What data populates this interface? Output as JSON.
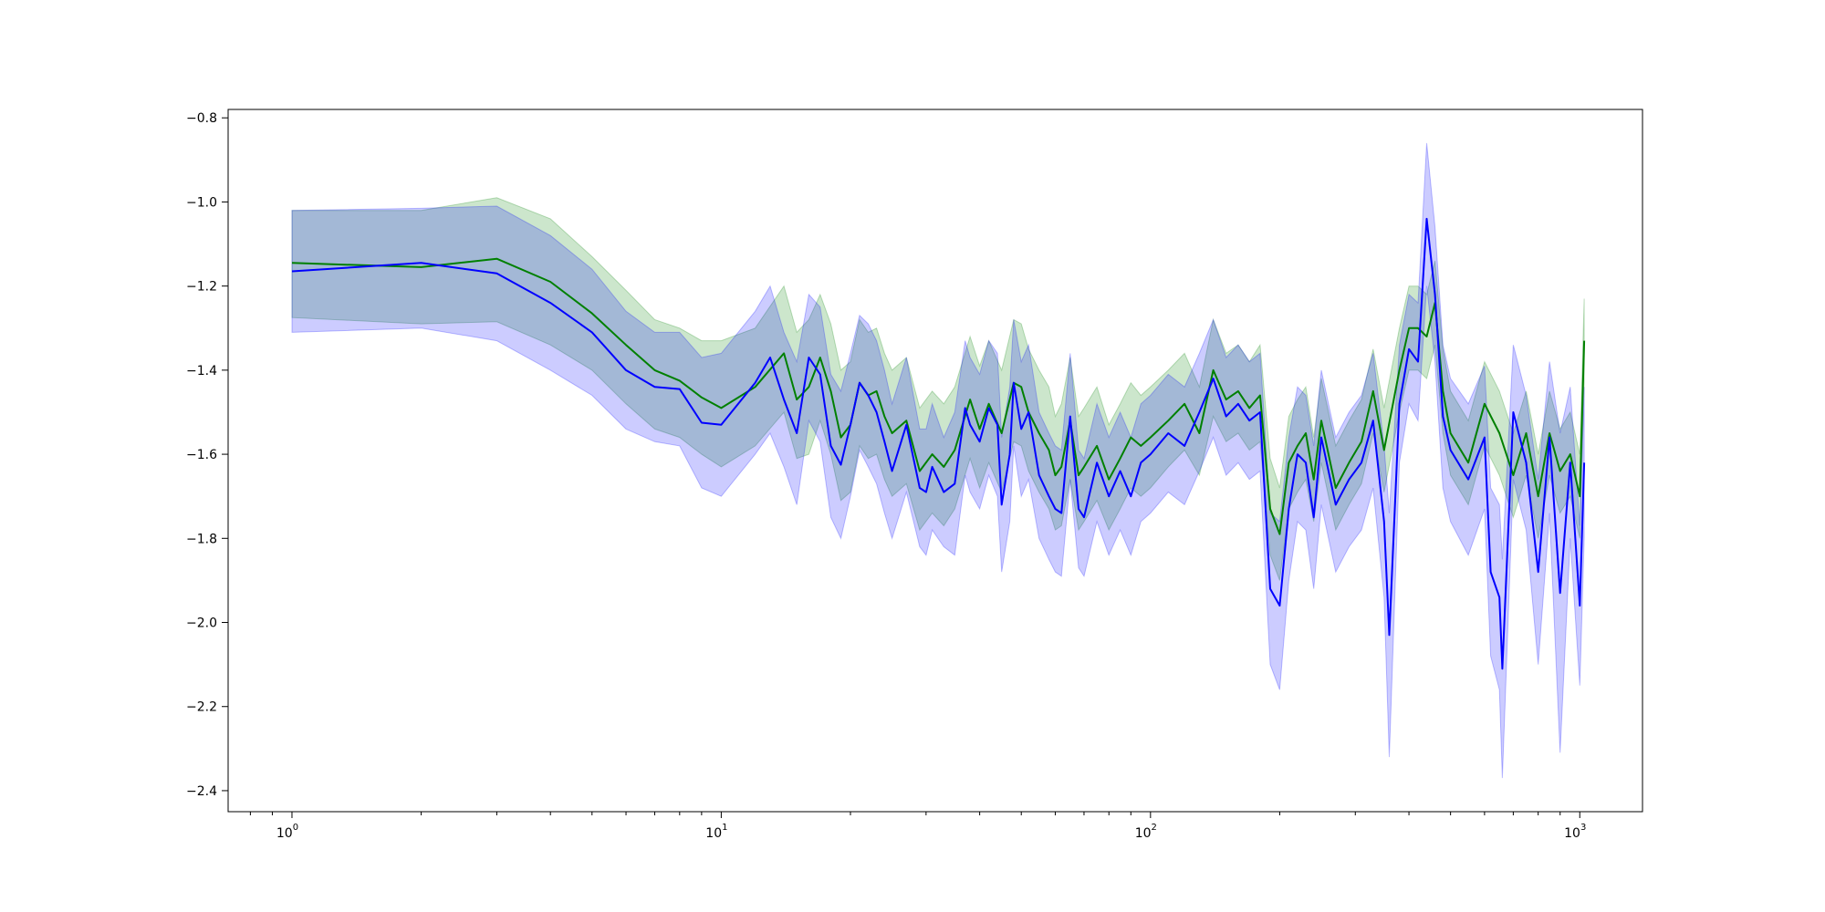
{
  "chart_data": {
    "type": "line",
    "title": "",
    "xlabel": "",
    "ylabel": "",
    "xscale": "log",
    "xlim": [
      0.71,
      1400
    ],
    "ylim": [
      -2.45,
      -0.78
    ],
    "grid": false,
    "legend": "none",
    "x_ticks": [
      {
        "base": "10",
        "exp": "0",
        "value": 1
      },
      {
        "base": "10",
        "exp": "1",
        "value": 10
      },
      {
        "base": "10",
        "exp": "2",
        "value": 100
      },
      {
        "base": "10",
        "exp": "3",
        "value": 1000
      }
    ],
    "y_ticks": [
      {
        "label": "−0.8",
        "value": -0.8
      },
      {
        "label": "−1.0",
        "value": -1.0
      },
      {
        "label": "−1.2",
        "value": -1.2
      },
      {
        "label": "−1.4",
        "value": -1.4
      },
      {
        "label": "−1.6",
        "value": -1.6
      },
      {
        "label": "−1.8",
        "value": -1.8
      },
      {
        "label": "−2.0",
        "value": -2.0
      },
      {
        "label": "−2.2",
        "value": -2.2
      },
      {
        "label": "−2.4",
        "value": -2.4
      }
    ],
    "series": [
      {
        "color": "#008000",
        "band_color": "#008000",
        "x": [
          1,
          2,
          3,
          4,
          5,
          6,
          7,
          8,
          9,
          10,
          12,
          14,
          15,
          16,
          17,
          18,
          19,
          20,
          21,
          22,
          23,
          24,
          25,
          27,
          29,
          31,
          33,
          35,
          38,
          40,
          42,
          45,
          48,
          50,
          52,
          55,
          58,
          60,
          62,
          65,
          68,
          70,
          75,
          80,
          85,
          90,
          95,
          100,
          110,
          120,
          130,
          140,
          150,
          160,
          170,
          180,
          190,
          200,
          210,
          220,
          230,
          240,
          250,
          270,
          290,
          310,
          330,
          350,
          380,
          400,
          420,
          440,
          460,
          480,
          500,
          550,
          600,
          650,
          700,
          750,
          800,
          850,
          900,
          950,
          1000,
          1024
        ],
        "y": [
          -1.145,
          -1.155,
          -1.135,
          -1.19,
          -1.265,
          -1.34,
          -1.4,
          -1.425,
          -1.465,
          -1.49,
          -1.44,
          -1.36,
          -1.47,
          -1.44,
          -1.37,
          -1.45,
          -1.56,
          -1.53,
          -1.43,
          -1.46,
          -1.45,
          -1.51,
          -1.55,
          -1.52,
          -1.64,
          -1.6,
          -1.63,
          -1.59,
          -1.47,
          -1.54,
          -1.48,
          -1.55,
          -1.43,
          -1.44,
          -1.5,
          -1.55,
          -1.59,
          -1.65,
          -1.63,
          -1.52,
          -1.65,
          -1.63,
          -1.58,
          -1.66,
          -1.61,
          -1.56,
          -1.58,
          -1.56,
          -1.52,
          -1.48,
          -1.55,
          -1.4,
          -1.47,
          -1.45,
          -1.49,
          -1.46,
          -1.73,
          -1.79,
          -1.62,
          -1.58,
          -1.55,
          -1.66,
          -1.52,
          -1.68,
          -1.62,
          -1.57,
          -1.45,
          -1.59,
          -1.4,
          -1.3,
          -1.3,
          -1.32,
          -1.24,
          -1.45,
          -1.55,
          -1.62,
          -1.48,
          -1.55,
          -1.65,
          -1.55,
          -1.7,
          -1.55,
          -1.64,
          -1.6,
          -1.7,
          -1.33
        ],
        "lower": [
          -1.275,
          -1.29,
          -1.285,
          -1.34,
          -1.4,
          -1.48,
          -1.54,
          -1.56,
          -1.6,
          -1.63,
          -1.58,
          -1.5,
          -1.61,
          -1.6,
          -1.52,
          -1.6,
          -1.71,
          -1.69,
          -1.58,
          -1.61,
          -1.6,
          -1.66,
          -1.7,
          -1.67,
          -1.78,
          -1.74,
          -1.77,
          -1.73,
          -1.61,
          -1.68,
          -1.62,
          -1.69,
          -1.57,
          -1.58,
          -1.64,
          -1.69,
          -1.73,
          -1.78,
          -1.77,
          -1.66,
          -1.78,
          -1.76,
          -1.71,
          -1.78,
          -1.73,
          -1.68,
          -1.7,
          -1.68,
          -1.63,
          -1.59,
          -1.65,
          -1.51,
          -1.57,
          -1.55,
          -1.59,
          -1.57,
          -1.84,
          -1.9,
          -1.73,
          -1.69,
          -1.66,
          -1.76,
          -1.62,
          -1.78,
          -1.72,
          -1.67,
          -1.55,
          -1.69,
          -1.5,
          -1.4,
          -1.4,
          -1.42,
          -1.34,
          -1.55,
          -1.65,
          -1.72,
          -1.58,
          -1.65,
          -1.75,
          -1.65,
          -1.8,
          -1.65,
          -1.74,
          -1.7,
          -1.8,
          -1.43
        ],
        "upper": [
          -1.02,
          -1.02,
          -0.99,
          -1.04,
          -1.13,
          -1.21,
          -1.28,
          -1.3,
          -1.33,
          -1.33,
          -1.3,
          -1.2,
          -1.31,
          -1.28,
          -1.22,
          -1.29,
          -1.4,
          -1.38,
          -1.28,
          -1.31,
          -1.3,
          -1.36,
          -1.4,
          -1.37,
          -1.49,
          -1.45,
          -1.48,
          -1.44,
          -1.32,
          -1.39,
          -1.33,
          -1.4,
          -1.28,
          -1.29,
          -1.35,
          -1.4,
          -1.44,
          -1.51,
          -1.48,
          -1.37,
          -1.51,
          -1.49,
          -1.44,
          -1.53,
          -1.48,
          -1.43,
          -1.46,
          -1.44,
          -1.4,
          -1.36,
          -1.44,
          -1.28,
          -1.36,
          -1.34,
          -1.38,
          -1.34,
          -1.61,
          -1.68,
          -1.51,
          -1.47,
          -1.44,
          -1.56,
          -1.42,
          -1.58,
          -1.52,
          -1.47,
          -1.35,
          -1.49,
          -1.3,
          -1.2,
          -1.2,
          -1.22,
          -1.14,
          -1.35,
          -1.45,
          -1.52,
          -1.38,
          -1.45,
          -1.55,
          -1.45,
          -1.6,
          -1.45,
          -1.54,
          -1.5,
          -1.6,
          -1.23
        ]
      },
      {
        "color": "#0000ff",
        "band_color": "#0000ff",
        "x": [
          1,
          2,
          3,
          4,
          5,
          6,
          7,
          8,
          9,
          10,
          12,
          13,
          14,
          15,
          16,
          17,
          18,
          19,
          20,
          21,
          22,
          23,
          24,
          25,
          27,
          29,
          30,
          31,
          33,
          35,
          37,
          38,
          40,
          42,
          44,
          45,
          47,
          48,
          50,
          52,
          55,
          58,
          60,
          62,
          65,
          68,
          70,
          75,
          80,
          85,
          90,
          95,
          100,
          110,
          120,
          130,
          140,
          150,
          160,
          170,
          180,
          190,
          200,
          210,
          220,
          230,
          240,
          250,
          270,
          290,
          310,
          330,
          350,
          360,
          380,
          400,
          420,
          440,
          460,
          480,
          500,
          550,
          600,
          620,
          650,
          660,
          700,
          750,
          800,
          850,
          900,
          950,
          1000,
          1024
        ],
        "y": [
          -1.165,
          -1.145,
          -1.17,
          -1.24,
          -1.31,
          -1.4,
          -1.44,
          -1.445,
          -1.525,
          -1.53,
          -1.43,
          -1.37,
          -1.47,
          -1.55,
          -1.37,
          -1.41,
          -1.58,
          -1.625,
          -1.53,
          -1.43,
          -1.46,
          -1.5,
          -1.57,
          -1.64,
          -1.53,
          -1.68,
          -1.69,
          -1.63,
          -1.69,
          -1.67,
          -1.49,
          -1.53,
          -1.57,
          -1.49,
          -1.53,
          -1.72,
          -1.6,
          -1.43,
          -1.54,
          -1.5,
          -1.65,
          -1.7,
          -1.73,
          -1.74,
          -1.51,
          -1.73,
          -1.75,
          -1.62,
          -1.7,
          -1.64,
          -1.7,
          -1.62,
          -1.6,
          -1.55,
          -1.58,
          -1.5,
          -1.42,
          -1.51,
          -1.48,
          -1.52,
          -1.5,
          -1.92,
          -1.96,
          -1.73,
          -1.6,
          -1.62,
          -1.75,
          -1.56,
          -1.72,
          -1.66,
          -1.62,
          -1.52,
          -1.76,
          -2.03,
          -1.48,
          -1.35,
          -1.38,
          -1.04,
          -1.22,
          -1.51,
          -1.59,
          -1.66,
          -1.56,
          -1.88,
          -1.94,
          -2.11,
          -1.5,
          -1.62,
          -1.88,
          -1.56,
          -1.93,
          -1.62,
          -1.96,
          -1.62
        ],
        "lower": [
          -1.31,
          -1.3,
          -1.33,
          -1.4,
          -1.46,
          -1.54,
          -1.57,
          -1.58,
          -1.68,
          -1.7,
          -1.6,
          -1.55,
          -1.63,
          -1.72,
          -1.52,
          -1.57,
          -1.75,
          -1.8,
          -1.7,
          -1.59,
          -1.63,
          -1.67,
          -1.74,
          -1.8,
          -1.69,
          -1.82,
          -1.84,
          -1.78,
          -1.82,
          -1.84,
          -1.65,
          -1.69,
          -1.73,
          -1.65,
          -1.7,
          -1.88,
          -1.76,
          -1.58,
          -1.7,
          -1.66,
          -1.8,
          -1.85,
          -1.88,
          -1.89,
          -1.66,
          -1.87,
          -1.89,
          -1.76,
          -1.84,
          -1.78,
          -1.84,
          -1.76,
          -1.74,
          -1.69,
          -1.72,
          -1.64,
          -1.56,
          -1.65,
          -1.62,
          -1.66,
          -1.64,
          -2.1,
          -2.16,
          -1.9,
          -1.76,
          -1.78,
          -1.92,
          -1.72,
          -1.88,
          -1.82,
          -1.78,
          -1.68,
          -1.94,
          -2.32,
          -1.62,
          -1.48,
          -1.52,
          -1.2,
          -1.38,
          -1.68,
          -1.76,
          -1.84,
          -1.73,
          -2.08,
          -2.16,
          -2.37,
          -1.66,
          -1.78,
          -2.1,
          -1.74,
          -2.31,
          -1.8,
          -2.15,
          -1.8
        ],
        "upper": [
          -1.02,
          -1.015,
          -1.01,
          -1.08,
          -1.16,
          -1.26,
          -1.31,
          -1.31,
          -1.37,
          -1.36,
          -1.26,
          -1.2,
          -1.31,
          -1.38,
          -1.22,
          -1.25,
          -1.41,
          -1.45,
          -1.36,
          -1.27,
          -1.29,
          -1.33,
          -1.4,
          -1.48,
          -1.37,
          -1.54,
          -1.54,
          -1.48,
          -1.56,
          -1.5,
          -1.33,
          -1.37,
          -1.41,
          -1.33,
          -1.36,
          -1.56,
          -1.44,
          -1.28,
          -1.38,
          -1.34,
          -1.5,
          -1.55,
          -1.58,
          -1.59,
          -1.36,
          -1.59,
          -1.61,
          -1.48,
          -1.56,
          -1.5,
          -1.56,
          -1.48,
          -1.46,
          -1.41,
          -1.44,
          -1.36,
          -1.28,
          -1.37,
          -1.34,
          -1.38,
          -1.36,
          -1.74,
          -1.76,
          -1.56,
          -1.44,
          -1.46,
          -1.58,
          -1.4,
          -1.56,
          -1.5,
          -1.46,
          -1.36,
          -1.58,
          -1.74,
          -1.34,
          -1.22,
          -1.24,
          -0.86,
          -1.06,
          -1.34,
          -1.42,
          -1.48,
          -1.39,
          -1.68,
          -1.72,
          -1.85,
          -1.34,
          -1.46,
          -1.66,
          -1.38,
          -1.55,
          -1.44,
          -1.77,
          -1.44
        ]
      }
    ]
  }
}
